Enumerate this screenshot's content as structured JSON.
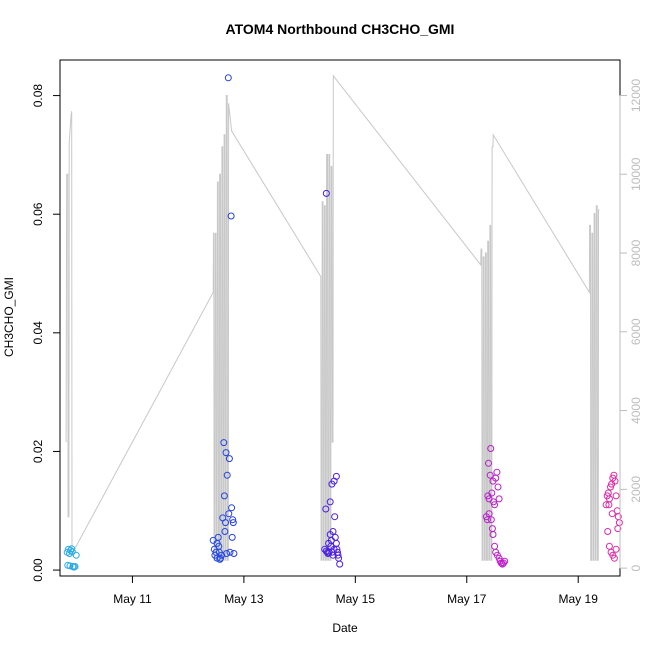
{
  "chart_data": {
    "type": "scatter",
    "title": "ATOM4 Northbound CH3CHO_GMI",
    "xlabel": "Date",
    "ylabel": "CH3CHO_GMI",
    "xlim": [
      9.7,
      19.75
    ],
    "ylim": [
      -0.001,
      0.086
    ],
    "y2lim": [
      -200,
      12900
    ],
    "x_ticks": [
      {
        "value": 11,
        "label": "May 11"
      },
      {
        "value": 13,
        "label": "May 13"
      },
      {
        "value": 15,
        "label": "May 15"
      },
      {
        "value": 17,
        "label": "May 17"
      },
      {
        "value": 19,
        "label": "May 19"
      }
    ],
    "y_ticks": [
      {
        "value": 0.0,
        "label": "0.00"
      },
      {
        "value": 0.02,
        "label": "0.02"
      },
      {
        "value": 0.04,
        "label": "0.04"
      },
      {
        "value": 0.06,
        "label": "0.06"
      },
      {
        "value": 0.08,
        "label": "0.08"
      }
    ],
    "y2_ticks": [
      {
        "value": 0,
        "label": "0"
      },
      {
        "value": 2000,
        "label": "2000"
      },
      {
        "value": 4000,
        "label": "4000"
      },
      {
        "value": 6000,
        "label": "6000"
      },
      {
        "value": 8000,
        "label": "8000"
      },
      {
        "value": 10000,
        "label": "10000"
      },
      {
        "value": 12000,
        "label": "12000"
      }
    ],
    "colors": {
      "altitude_line": "#c8c8c8",
      "point_gradient": [
        "#29aee8",
        "#1f63e6",
        "#2a1fe0",
        "#7a1fe0",
        "#c21fc8",
        "#e02aa8"
      ],
      "axes": "#000000",
      "right_axis": "#bdbdbd"
    },
    "series": [
      {
        "name": "CH3CHO_GMI",
        "points": [
          [
            9.83,
            0.003
          ],
          [
            9.85,
            0.0035
          ],
          [
            9.87,
            0.0028
          ],
          [
            9.89,
            0.0033
          ],
          [
            9.91,
            0.0036
          ],
          [
            9.84,
            0.0008
          ],
          [
            9.88,
            0.0007
          ],
          [
            9.93,
            0.0006
          ],
          [
            9.95,
            0.0005
          ],
          [
            9.97,
            0.0006
          ],
          [
            9.99,
            0.0025
          ],
          [
            9.92,
            0.0031
          ],
          [
            12.45,
            0.005
          ],
          [
            12.47,
            0.0035
          ],
          [
            12.48,
            0.0025
          ],
          [
            12.5,
            0.003
          ],
          [
            12.52,
            0.0045
          ],
          [
            12.54,
            0.0055
          ],
          [
            12.55,
            0.004
          ],
          [
            12.56,
            0.003
          ],
          [
            12.58,
            0.002
          ],
          [
            12.6,
            0.0025
          ],
          [
            12.62,
            0.0088
          ],
          [
            12.64,
            0.0215
          ],
          [
            12.65,
            0.0125
          ],
          [
            12.67,
            0.008
          ],
          [
            12.68,
            0.0198
          ],
          [
            12.69,
            0.0028
          ],
          [
            12.7,
            0.016
          ],
          [
            12.72,
            0.083
          ],
          [
            12.74,
            0.0188
          ],
          [
            12.75,
            0.003
          ],
          [
            12.77,
            0.0597
          ],
          [
            12.78,
            0.0105
          ],
          [
            12.79,
            0.0055
          ],
          [
            12.8,
            0.0085
          ],
          [
            12.81,
            0.008
          ],
          [
            12.82,
            0.0028
          ],
          [
            12.52,
            0.002
          ],
          [
            12.57,
            0.0018
          ],
          [
            12.66,
            0.0065
          ],
          [
            12.73,
            0.0095
          ],
          [
            14.45,
            0.0035
          ],
          [
            14.48,
            0.0032
          ],
          [
            14.5,
            0.003
          ],
          [
            14.52,
            0.0045
          ],
          [
            14.55,
            0.006
          ],
          [
            14.56,
            0.004
          ],
          [
            14.58,
            0.003
          ],
          [
            14.6,
            0.0025
          ],
          [
            14.62,
            0.0035
          ],
          [
            14.64,
            0.0055
          ],
          [
            14.66,
            0.0045
          ],
          [
            14.68,
            0.003
          ],
          [
            14.7,
            0.002
          ],
          [
            14.72,
            0.001
          ],
          [
            14.48,
            0.0635
          ],
          [
            14.47,
            0.0103
          ],
          [
            14.55,
            0.0115
          ],
          [
            14.58,
            0.0145
          ],
          [
            14.62,
            0.015
          ],
          [
            14.66,
            0.0158
          ],
          [
            14.63,
            0.009
          ],
          [
            14.53,
            0.003
          ],
          [
            14.57,
            0.005
          ],
          [
            14.6,
            0.0065
          ],
          [
            14.51,
            0.0028
          ],
          [
            14.67,
            0.0035
          ],
          [
            14.69,
            0.0025
          ],
          [
            17.35,
            0.009
          ],
          [
            17.37,
            0.0085
          ],
          [
            17.39,
            0.018
          ],
          [
            17.4,
            0.012
          ],
          [
            17.42,
            0.016
          ],
          [
            17.43,
            0.0205
          ],
          [
            17.45,
            0.013
          ],
          [
            17.47,
            0.015
          ],
          [
            17.48,
            0.0115
          ],
          [
            17.5,
            0.011
          ],
          [
            17.52,
            0.0155
          ],
          [
            17.54,
            0.0165
          ],
          [
            17.56,
            0.014
          ],
          [
            17.58,
            0.012
          ],
          [
            17.4,
            0.0095
          ],
          [
            17.44,
            0.0085
          ],
          [
            17.47,
            0.006
          ],
          [
            17.5,
            0.004
          ],
          [
            17.52,
            0.003
          ],
          [
            17.55,
            0.0025
          ],
          [
            17.58,
            0.002
          ],
          [
            17.6,
            0.0015
          ],
          [
            17.62,
            0.0012
          ],
          [
            17.64,
            0.001
          ],
          [
            17.66,
            0.0012
          ],
          [
            17.68,
            0.0015
          ],
          [
            17.38,
            0.0125
          ],
          [
            17.46,
            0.007
          ],
          [
            19.5,
            0.011
          ],
          [
            19.52,
            0.0125
          ],
          [
            19.54,
            0.013
          ],
          [
            19.56,
            0.012
          ],
          [
            19.58,
            0.014
          ],
          [
            19.6,
            0.0145
          ],
          [
            19.62,
            0.0155
          ],
          [
            19.64,
            0.016
          ],
          [
            19.66,
            0.015
          ],
          [
            19.68,
            0.0125
          ],
          [
            19.7,
            0.01
          ],
          [
            19.72,
            0.009
          ],
          [
            19.74,
            0.008
          ],
          [
            19.53,
            0.0065
          ],
          [
            19.56,
            0.004
          ],
          [
            19.59,
            0.003
          ],
          [
            19.62,
            0.0025
          ],
          [
            19.65,
            0.002
          ],
          [
            19.68,
            0.0035
          ],
          [
            19.71,
            0.007
          ],
          [
            19.55,
            0.011
          ],
          [
            19.61,
            0.0095
          ]
        ]
      },
      {
        "name": "Altitude",
        "axis": "right",
        "points": [
          [
            9.81,
            3200
          ],
          [
            9.82,
            10000
          ],
          [
            9.84,
            10000
          ],
          [
            9.845,
            1300
          ],
          [
            9.86,
            1300
          ],
          [
            9.865,
            10800
          ],
          [
            9.88,
            11100
          ],
          [
            9.9,
            11500
          ],
          [
            9.91,
            11600
          ],
          [
            9.915,
            500
          ],
          [
            9.95,
            450
          ],
          [
            12.45,
            7000
          ],
          [
            12.455,
            8500
          ],
          [
            12.46,
            8500
          ],
          [
            12.465,
            200
          ],
          [
            12.48,
            200
          ],
          [
            12.485,
            8500
          ],
          [
            12.5,
            8500
          ],
          [
            12.505,
            200
          ],
          [
            12.52,
            200
          ],
          [
            12.525,
            9800
          ],
          [
            12.54,
            9800
          ],
          [
            12.545,
            200
          ],
          [
            12.56,
            200
          ],
          [
            12.565,
            10000
          ],
          [
            12.58,
            10000
          ],
          [
            12.585,
            200
          ],
          [
            12.6,
            200
          ],
          [
            12.605,
            10700
          ],
          [
            12.62,
            10700
          ],
          [
            12.625,
            200
          ],
          [
            12.64,
            200
          ],
          [
            12.645,
            11000
          ],
          [
            12.66,
            11000
          ],
          [
            12.665,
            200
          ],
          [
            12.68,
            200
          ],
          [
            12.685,
            12000
          ],
          [
            12.7,
            12000
          ],
          [
            12.705,
            200
          ],
          [
            12.72,
            200
          ],
          [
            12.725,
            11800
          ],
          [
            12.78,
            11100
          ],
          [
            14.38,
            7400
          ],
          [
            14.385,
            200
          ],
          [
            14.4,
            200
          ],
          [
            14.405,
            9300
          ],
          [
            14.42,
            9300
          ],
          [
            14.425,
            200
          ],
          [
            14.44,
            200
          ],
          [
            14.445,
            9200
          ],
          [
            14.46,
            9200
          ],
          [
            14.465,
            200
          ],
          [
            14.48,
            200
          ],
          [
            14.485,
            10500
          ],
          [
            14.5,
            10500
          ],
          [
            14.505,
            200
          ],
          [
            14.52,
            200
          ],
          [
            14.525,
            10500
          ],
          [
            14.54,
            10500
          ],
          [
            14.545,
            200
          ],
          [
            14.56,
            200
          ],
          [
            14.565,
            10200
          ],
          [
            14.58,
            10200
          ],
          [
            14.585,
            3200
          ],
          [
            14.6,
            3200
          ],
          [
            14.605,
            12500
          ],
          [
            17.25,
            7700
          ],
          [
            17.255,
            8100
          ],
          [
            17.27,
            8100
          ],
          [
            17.275,
            200
          ],
          [
            17.29,
            200
          ],
          [
            17.295,
            7900
          ],
          [
            17.31,
            7900
          ],
          [
            17.315,
            200
          ],
          [
            17.33,
            200
          ],
          [
            17.335,
            8000
          ],
          [
            17.35,
            8000
          ],
          [
            17.355,
            200
          ],
          [
            17.37,
            200
          ],
          [
            17.375,
            8300
          ],
          [
            17.39,
            8300
          ],
          [
            17.395,
            200
          ],
          [
            17.41,
            200
          ],
          [
            17.415,
            8700
          ],
          [
            17.43,
            8700
          ],
          [
            17.435,
            200
          ],
          [
            17.45,
            200
          ],
          [
            17.455,
            10700
          ],
          [
            17.47,
            10700
          ],
          [
            17.475,
            11000
          ],
          [
            19.2,
            7000
          ],
          [
            19.205,
            8700
          ],
          [
            19.22,
            8700
          ],
          [
            19.225,
            200
          ],
          [
            19.24,
            200
          ],
          [
            19.245,
            8500
          ],
          [
            19.26,
            8500
          ],
          [
            19.265,
            200
          ],
          [
            19.28,
            200
          ],
          [
            19.285,
            9000
          ],
          [
            19.3,
            9000
          ],
          [
            19.305,
            200
          ],
          [
            19.32,
            200
          ],
          [
            19.325,
            9200
          ],
          [
            19.34,
            9200
          ],
          [
            19.345,
            200
          ],
          [
            19.36,
            200
          ],
          [
            19.365,
            9100
          ],
          [
            19.38,
            9100
          ]
        ]
      }
    ]
  }
}
